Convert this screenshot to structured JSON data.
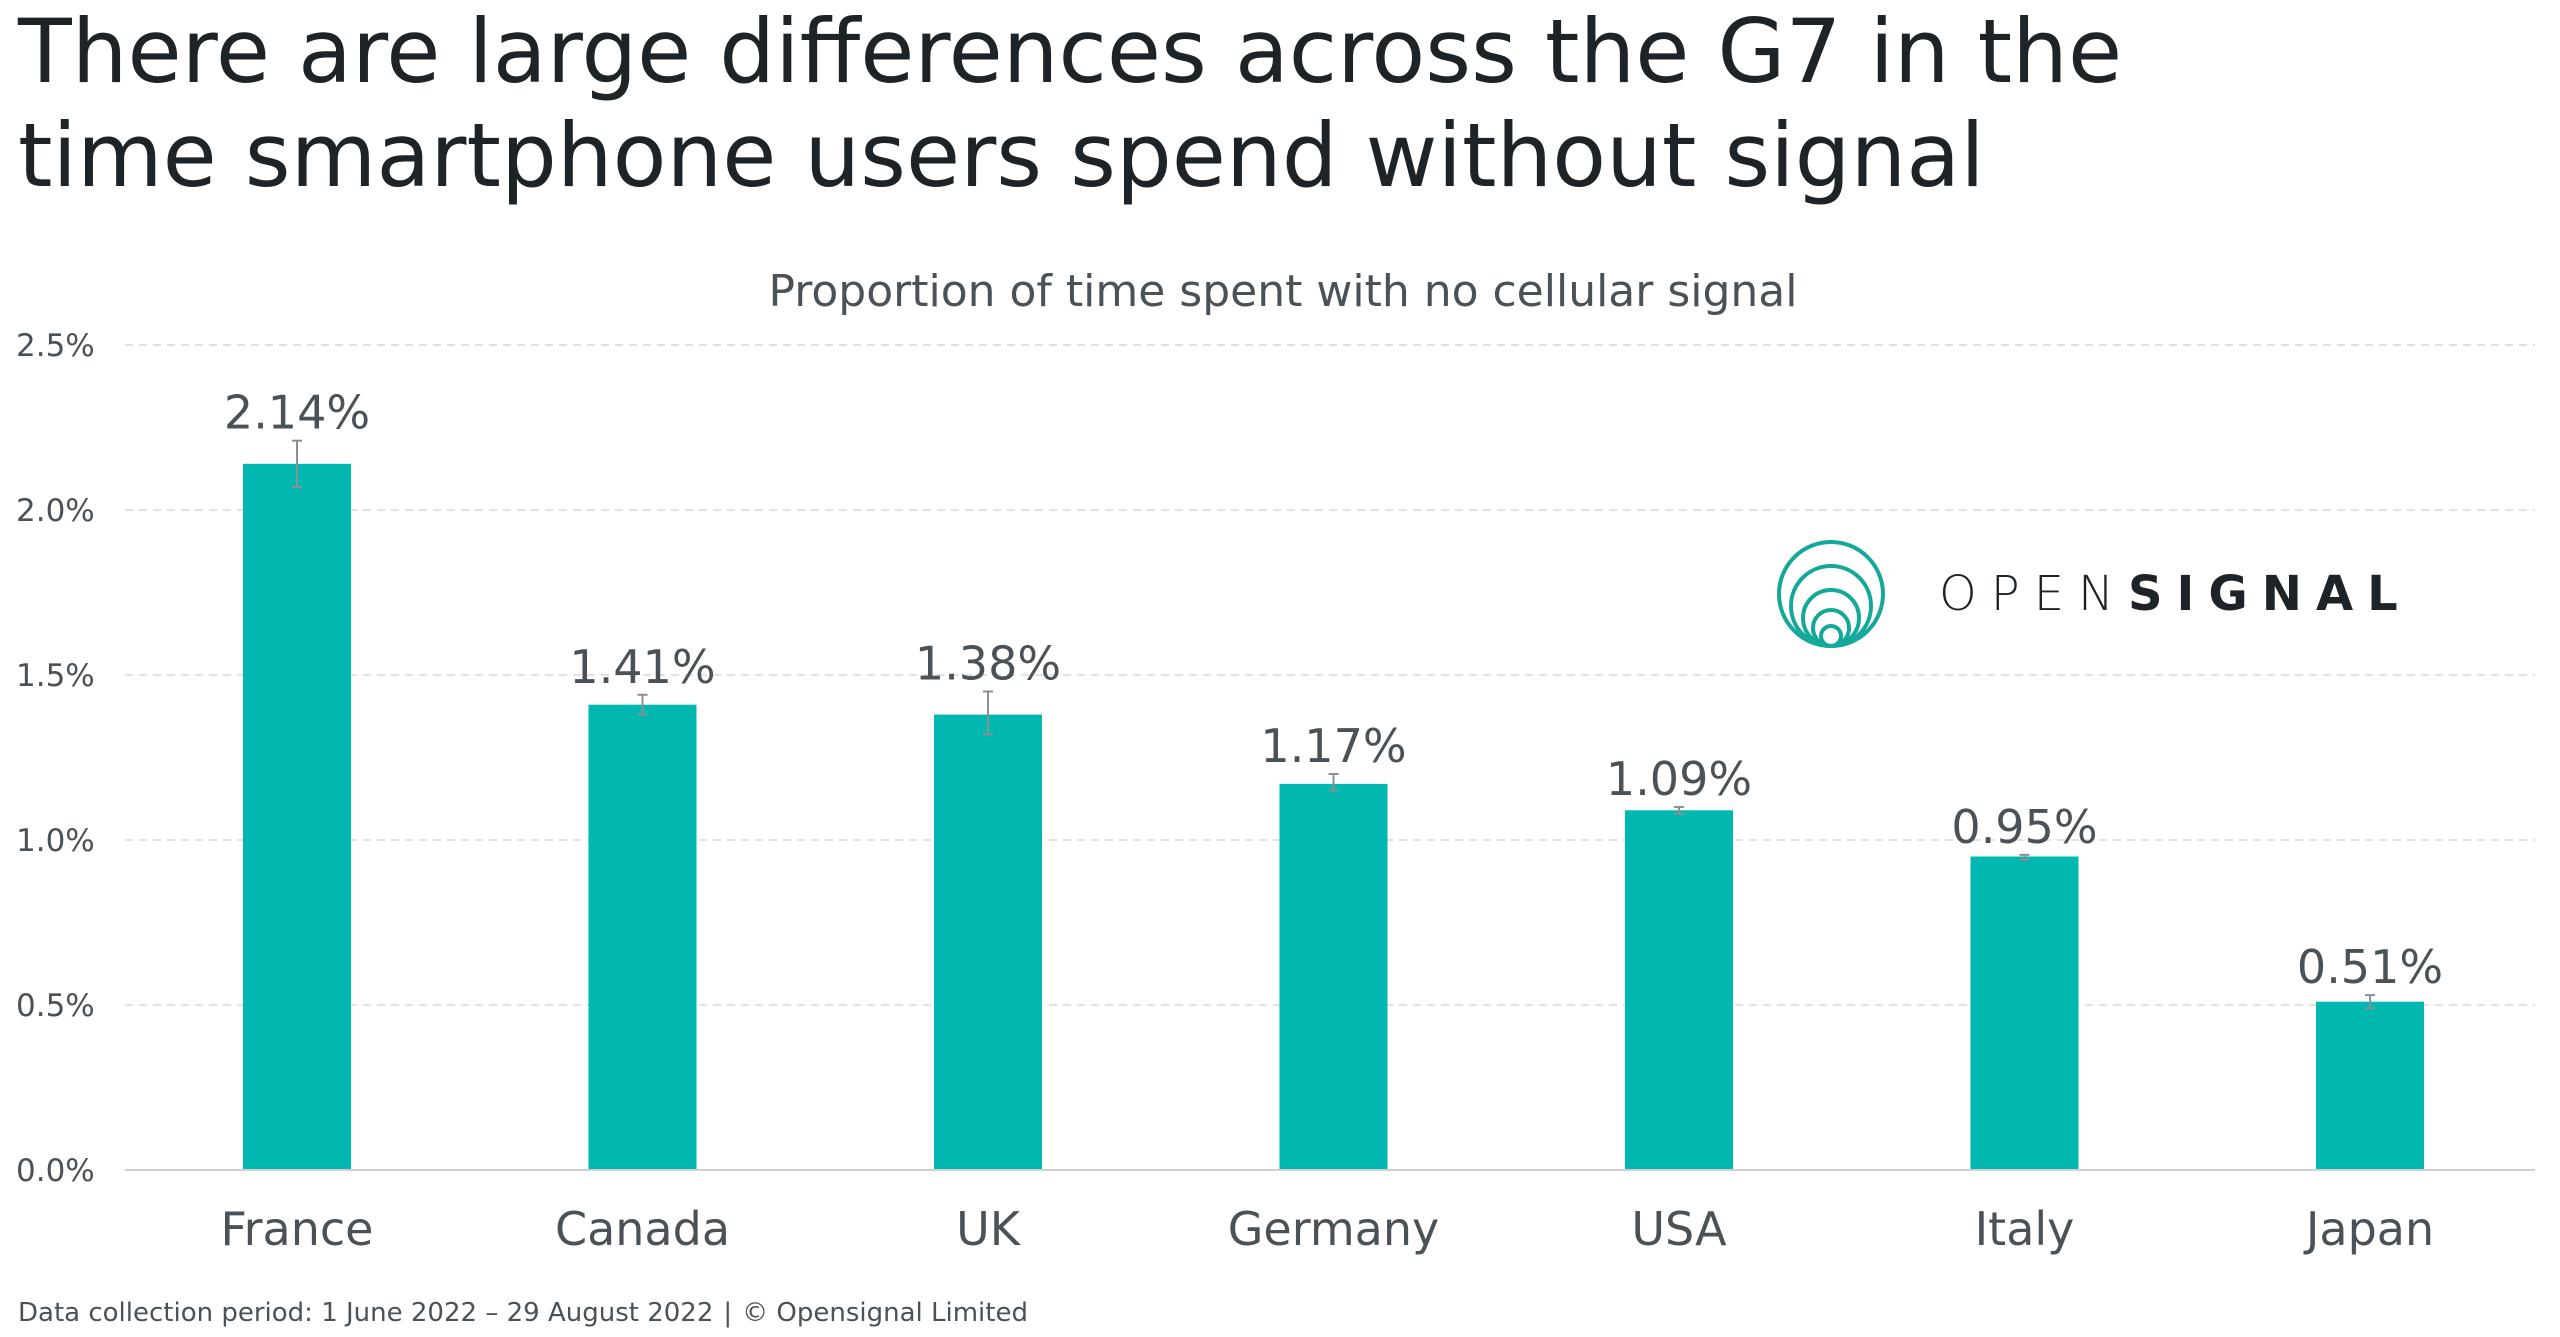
{
  "headline": {
    "line1": "There are large differences across the G7 in the",
    "line2": "time smartphone users spend without signal"
  },
  "logo": {
    "word_light": "OPEN",
    "word_bold": "SIGNAL",
    "icon": "opensignal-concentric-circles-icon"
  },
  "footnote": {
    "period": "Data collection period: 1 June 2022 – 29 August 2022",
    "separator": "|",
    "copyright": "© Opensignal Limited"
  },
  "colors": {
    "bar": "#00b8b0",
    "grid": "#e2e2e2",
    "text": "#4a5257",
    "errorbar": "#8a8f93",
    "logo_teal": "#14a89a"
  },
  "chart_data": {
    "type": "bar",
    "title": "Proportion of time spent with no cellular signal",
    "xlabel": "",
    "ylabel": "",
    "ylim": [
      0,
      2.5
    ],
    "yticks": [
      0,
      0.5,
      1.0,
      1.5,
      2.0,
      2.5
    ],
    "ytick_labels": [
      "0.0%",
      "0.5%",
      "1.0%",
      "1.5%",
      "2.0%",
      "2.5%"
    ],
    "grid": true,
    "categories": [
      "France",
      "Canada",
      "UK",
      "Germany",
      "USA",
      "Italy",
      "Japan"
    ],
    "values": [
      2.14,
      1.41,
      1.38,
      1.17,
      1.09,
      0.95,
      0.51
    ],
    "value_labels": [
      "2.14%",
      "1.41%",
      "1.38%",
      "1.17%",
      "1.09%",
      "0.95%",
      "0.51%"
    ],
    "error_low": [
      2.07,
      1.38,
      1.32,
      1.15,
      1.08,
      0.94,
      0.49
    ],
    "error_high": [
      2.21,
      1.44,
      1.45,
      1.2,
      1.1,
      0.955,
      0.53
    ]
  }
}
